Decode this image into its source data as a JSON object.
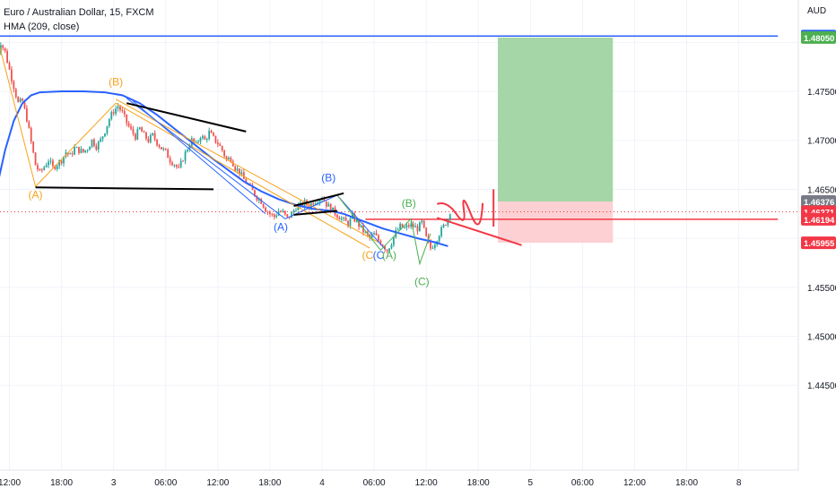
{
  "header": {
    "symbol_title": "Euro / Australian Dollar, 15, FXCM",
    "indicator_title": "HMA (209, close)"
  },
  "chart_data": {
    "type": "candlestick",
    "title": "Euro / Australian Dollar, 15, FXCM",
    "currency_label": "AUD",
    "grid": true,
    "ylim": [
      1.441,
      1.4825
    ],
    "y_ticks": [
      "1.47500",
      "1.47000",
      "1.46500",
      "1.45500",
      "1.45000",
      "1.44500"
    ],
    "x_ticks": [
      {
        "label": "12:00",
        "bar": 6
      },
      {
        "label": "18:00",
        "bar": 30
      },
      {
        "label": "3",
        "bar": 54
      },
      {
        "label": "06:00",
        "bar": 78
      },
      {
        "label": "12:00",
        "bar": 102
      },
      {
        "label": "18:00",
        "bar": 126
      },
      {
        "label": "4",
        "bar": 150
      },
      {
        "label": "06:00",
        "bar": 174
      },
      {
        "label": "12:00",
        "bar": 198
      },
      {
        "label": "18:00",
        "bar": 222
      },
      {
        "label": "5",
        "bar": 246
      },
      {
        "label": "06:00",
        "bar": 270
      },
      {
        "label": "12:00",
        "bar": 294
      },
      {
        "label": "18:00",
        "bar": 318
      },
      {
        "label": "8",
        "bar": 342
      }
    ],
    "close_path": [
      [
        0,
        1.4782
      ],
      [
        2,
        1.48
      ],
      [
        4,
        1.479
      ],
      [
        6,
        1.4772
      ],
      [
        8,
        1.4755
      ],
      [
        10,
        1.4738
      ],
      [
        12,
        1.474
      ],
      [
        14,
        1.4722
      ],
      [
        16,
        1.4698
      ],
      [
        18,
        1.4675
      ],
      [
        20,
        1.4667
      ],
      [
        22,
        1.4673
      ],
      [
        24,
        1.468
      ],
      [
        26,
        1.4672
      ],
      [
        28,
        1.4676
      ],
      [
        30,
        1.468
      ],
      [
        32,
        1.4688
      ],
      [
        34,
        1.4684
      ],
      [
        36,
        1.4692
      ],
      [
        38,
        1.469
      ],
      [
        40,
        1.4688
      ],
      [
        42,
        1.4692
      ],
      [
        44,
        1.47
      ],
      [
        46,
        1.4694
      ],
      [
        48,
        1.47
      ],
      [
        50,
        1.471
      ],
      [
        52,
        1.4722
      ],
      [
        54,
        1.473
      ],
      [
        56,
        1.4735
      ],
      [
        58,
        1.4728
      ],
      [
        60,
        1.4718
      ],
      [
        62,
        1.471
      ],
      [
        64,
        1.4704
      ],
      [
        66,
        1.4712
      ],
      [
        68,
        1.4705
      ],
      [
        70,
        1.47
      ],
      [
        72,
        1.4705
      ],
      [
        74,
        1.4698
      ],
      [
        76,
        1.4692
      ],
      [
        78,
        1.4688
      ],
      [
        80,
        1.468
      ],
      [
        82,
        1.4676
      ],
      [
        84,
        1.467
      ],
      [
        86,
        1.4682
      ],
      [
        88,
        1.4692
      ],
      [
        90,
        1.47
      ],
      [
        92,
        1.4695
      ],
      [
        94,
        1.4705
      ],
      [
        96,
        1.47
      ],
      [
        98,
        1.4708
      ],
      [
        100,
        1.4702
      ],
      [
        102,
        1.4697
      ],
      [
        104,
        1.469
      ],
      [
        106,
        1.468
      ],
      [
        108,
        1.4682
      ],
      [
        110,
        1.4672
      ],
      [
        112,
        1.4668
      ],
      [
        114,
        1.466
      ],
      [
        116,
        1.4654
      ],
      [
        118,
        1.4648
      ],
      [
        120,
        1.4642
      ],
      [
        122,
        1.4638
      ],
      [
        124,
        1.463
      ],
      [
        126,
        1.4625
      ],
      [
        128,
        1.4622
      ],
      [
        130,
        1.4628
      ],
      [
        132,
        1.4626
      ],
      [
        134,
        1.462
      ],
      [
        136,
        1.4625
      ],
      [
        138,
        1.4632
      ],
      [
        140,
        1.4633
      ],
      [
        142,
        1.4636
      ],
      [
        144,
        1.4633
      ],
      [
        146,
        1.4637
      ],
      [
        148,
        1.464
      ],
      [
        150,
        1.4642
      ],
      [
        152,
        1.4635
      ],
      [
        154,
        1.463
      ],
      [
        156,
        1.4626
      ],
      [
        158,
        1.4622
      ],
      [
        160,
        1.4618
      ],
      [
        162,
        1.4615
      ],
      [
        164,
        1.4622
      ],
      [
        166,
        1.4617
      ],
      [
        168,
        1.461
      ],
      [
        170,
        1.4605
      ],
      [
        172,
        1.46
      ],
      [
        174,
        1.4604
      ],
      [
        176,
        1.4598
      ],
      [
        178,
        1.4594
      ],
      [
        180,
        1.4588
      ],
      [
        182,
        1.4596
      ],
      [
        184,
        1.4606
      ],
      [
        186,
        1.4612
      ],
      [
        188,
        1.461
      ],
      [
        190,
        1.4613
      ],
      [
        192,
        1.4612
      ],
      [
        194,
        1.461
      ],
      [
        196,
        1.4616
      ],
      [
        198,
        1.46
      ],
      [
        200,
        1.459
      ],
      [
        202,
        1.4596
      ],
      [
        204,
        1.4605
      ],
      [
        206,
        1.4612
      ],
      [
        208,
        1.462
      ],
      [
        209,
        1.4628
      ]
    ],
    "hma_path": [
      [
        0,
        1.465
      ],
      [
        4,
        1.469
      ],
      [
        8,
        1.472
      ],
      [
        12,
        1.4738
      ],
      [
        16,
        1.4746
      ],
      [
        20,
        1.4749
      ],
      [
        30,
        1.475
      ],
      [
        40,
        1.475
      ],
      [
        50,
        1.4749
      ],
      [
        58,
        1.4746
      ],
      [
        66,
        1.4738
      ],
      [
        74,
        1.4726
      ],
      [
        82,
        1.4712
      ],
      [
        90,
        1.4698
      ],
      [
        98,
        1.4684
      ],
      [
        106,
        1.4671
      ],
      [
        114,
        1.4658
      ],
      [
        122,
        1.4648
      ],
      [
        130,
        1.464
      ],
      [
        138,
        1.4634
      ],
      [
        146,
        1.463
      ],
      [
        154,
        1.4628
      ],
      [
        160,
        1.4625
      ],
      [
        166,
        1.462
      ],
      [
        172,
        1.4615
      ],
      [
        178,
        1.461
      ],
      [
        186,
        1.4605
      ],
      [
        194,
        1.46
      ],
      [
        202,
        1.4596
      ],
      [
        208,
        1.4592
      ]
    ],
    "trendlines": [
      {
        "color": "#000000",
        "points": [
          [
            18,
            1.4652
          ],
          [
            100,
            1.465
          ]
        ]
      },
      {
        "color": "#000000",
        "points": [
          [
            60,
            1.4738
          ],
          [
            115,
            1.4709
          ]
        ]
      },
      {
        "color": "#000000",
        "points": [
          [
            137,
            1.4624
          ],
          [
            157,
            1.4628
          ]
        ]
      },
      {
        "color": "#000000",
        "points": [
          [
            137,
            1.4633
          ],
          [
            160,
            1.4646
          ]
        ]
      }
    ],
    "wave_paths": [
      {
        "color": "#f7a21b",
        "points": [
          [
            1,
            1.48
          ],
          [
            18,
            1.4653
          ],
          [
            55,
            1.4738
          ],
          [
            172,
            1.459
          ]
        ]
      },
      {
        "color": "#f7a21b",
        "points": [
          [
            55,
            1.4742
          ],
          [
            176,
            1.4596
          ]
        ]
      },
      {
        "color": "#2962ff",
        "points": [
          [
            60,
            1.4743
          ],
          [
            133,
            1.462
          ],
          [
            157,
            1.4644
          ],
          [
            179,
            1.4589
          ]
        ]
      },
      {
        "color": "#2962ff",
        "points": [
          [
            63,
            1.474
          ],
          [
            124,
            1.4625
          ]
        ]
      },
      {
        "color": "#4caf50",
        "points": [
          [
            157,
            1.4644
          ],
          [
            177,
            1.4588
          ],
          [
            191,
            1.462
          ],
          [
            195,
            1.4574
          ],
          [
            200,
            1.4605
          ]
        ]
      }
    ],
    "wave_labels": [
      {
        "text": "(A)",
        "color": "#f7a21b",
        "bar": 18,
        "price": 1.4641
      },
      {
        "text": "(B)",
        "color": "#f7a21b",
        "bar": 55,
        "price": 1.4756
      },
      {
        "text": "(C",
        "color": "#f7a21b",
        "bar": 171,
        "price": 1.4579
      },
      {
        "text": "(A)",
        "color": "#2962ff",
        "bar": 131,
        "price": 1.4608
      },
      {
        "text": "(B)",
        "color": "#2962ff",
        "bar": 153,
        "price": 1.4658
      },
      {
        "text": "(C",
        "color": "#2962ff",
        "bar": 176,
        "price": 1.4579
      },
      {
        "text": "(A)",
        "color": "#4caf50",
        "bar": 181,
        "price": 1.4579
      },
      {
        "text": "(B)",
        "color": "#4caf50",
        "bar": 190,
        "price": 1.4632
      },
      {
        "text": "(C)",
        "color": "#4caf50",
        "bar": 196,
        "price": 1.4552
      },
      {
        "text": "/)",
        "color": "#4caf50",
        "bar": 0,
        "price": 1.4814
      }
    ],
    "horizontal_lines": [
      {
        "price": 1.48065,
        "color": "#2962ff",
        "from_bar": 0,
        "to_bar": 360
      },
      {
        "price": 1.46194,
        "color": "#f23645",
        "from_bar": 170,
        "to_bar": 360
      }
    ],
    "current_price_line": {
      "price": 1.46271,
      "color": "#f23645"
    },
    "position_tool": {
      "from_bar": 231,
      "to_bar": 284,
      "target": 1.4805,
      "entry": 1.46376,
      "stop": 1.45955
    },
    "drawings": [
      {
        "color": "#f23645",
        "points": [
          [
            203,
            1.4635
          ],
          [
            212,
            1.463
          ],
          [
            224,
            1.4636
          ]
        ]
      },
      {
        "color": "#f23645",
        "points": [
          [
            203,
            1.4621
          ],
          [
            242,
            1.4593
          ]
        ]
      },
      {
        "color": "#f23645",
        "points": [
          [
            229,
            1.465
          ],
          [
            229,
            1.4612
          ]
        ]
      }
    ],
    "price_labels": [
      {
        "text": "1.48065",
        "price": 1.48065,
        "bg": "#2962ff",
        "fg": "#ffffff"
      },
      {
        "text": "1.48050",
        "price": 1.4805,
        "bg": "#4caf50",
        "fg": "#ffffff"
      },
      {
        "text": "1.46376",
        "price": 1.46376,
        "bg": "#787b86",
        "fg": "#ffffff"
      },
      {
        "text": "1.46271",
        "price": 1.46271,
        "bg": "#f23645",
        "fg": "#ffffff"
      },
      {
        "text": "1.46194",
        "price": 1.46194,
        "bg": "#f23645",
        "fg": "#ffffff"
      },
      {
        "text": "1.45955",
        "price": 1.45955,
        "bg": "#f23645",
        "fg": "#ffffff"
      }
    ],
    "colors": {
      "up": "#26a69a",
      "down": "#ef5350",
      "hma": "#2962ff",
      "grid": "#f0f3fa",
      "axis_text": "#131722",
      "profit_zone": "#a5d6a7",
      "loss_zone": "#fdd0d3"
    }
  }
}
